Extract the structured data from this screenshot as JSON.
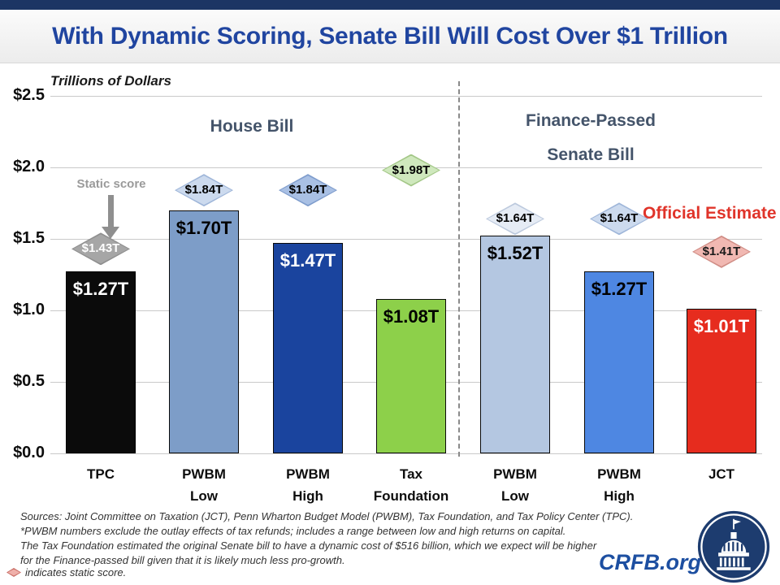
{
  "header": {
    "title": "With Dynamic Scoring, Senate Bill Will Cost Over $1 Trillion"
  },
  "chart_data": {
    "type": "bar",
    "title": "With Dynamic Scoring, Senate Bill Will Cost Over $1 Trillion",
    "axis_label": "Trillions of Dollars",
    "ylim": [
      0,
      2.5
    ],
    "grid": true,
    "yticks": [
      {
        "value": 0.0,
        "label": "$0.0"
      },
      {
        "value": 0.5,
        "label": "$0.5"
      },
      {
        "value": 1.0,
        "label": "$1.0"
      },
      {
        "value": 1.5,
        "label": "$1.5"
      },
      {
        "value": 2.0,
        "label": "$2.0"
      },
      {
        "value": 2.5,
        "label": "$2.5"
      }
    ],
    "sections": [
      {
        "label": "House Bill",
        "label_lines": [
          "House Bill"
        ]
      },
      {
        "label": "Finance-Passed Senate Bill",
        "label_lines": [
          "Finance-Passed",
          "Senate Bill"
        ]
      }
    ],
    "bars": [
      {
        "category": "TPC",
        "category_lines": "TPC",
        "section": "House Bill",
        "dynamic_value": 1.27,
        "dynamic_label": "$1.27T",
        "static_value": 1.43,
        "static_label": "$1.43T",
        "bar_color": "#0b0b0b",
        "bar_border": "#000000",
        "value_text_color": "#ffffff",
        "diamond_fill": "#a6a6a6",
        "diamond_border": "#8f8f8f",
        "diamond_text_color": "#ffffff"
      },
      {
        "category": "PWBM Low",
        "category_lines": "PWBM\nLow",
        "section": "House Bill",
        "dynamic_value": 1.7,
        "dynamic_label": "$1.70T",
        "static_value": 1.84,
        "static_label": "$1.84T",
        "bar_color": "#7d9dc8",
        "bar_border": "#0a0a0a",
        "value_text_color": "#000000",
        "diamond_fill": "#ccdaee",
        "diamond_border": "#9fb6d9",
        "diamond_text_color": "#000000"
      },
      {
        "category": "PWBM High",
        "category_lines": "PWBM\nHigh",
        "section": "House Bill",
        "dynamic_value": 1.47,
        "dynamic_label": "$1.47T",
        "static_value": 1.84,
        "static_label": "$1.84T",
        "bar_color": "#1a449e",
        "bar_border": "#0a0a0a",
        "value_text_color": "#ffffff",
        "diamond_fill": "#a9c0e4",
        "diamond_border": "#7e9ccc",
        "diamond_text_color": "#000000"
      },
      {
        "category": "Tax Foundation",
        "category_lines": "Tax\nFoundation",
        "section": "House Bill",
        "dynamic_value": 1.08,
        "dynamic_label": "$1.08T",
        "static_value": 1.98,
        "static_label": "$1.98T",
        "bar_color": "#8dd04a",
        "bar_border": "#0a0a0a",
        "value_text_color": "#000000",
        "diamond_fill": "#cfe8bd",
        "diamond_border": "#a3c787",
        "diamond_text_color": "#000000"
      },
      {
        "category": "PWBM Low",
        "category_lines": "PWBM\nLow",
        "section": "Finance-Passed Senate Bill",
        "dynamic_value": 1.52,
        "dynamic_label": "$1.52T",
        "static_value": 1.64,
        "static_label": "$1.64T",
        "bar_color": "#b4c7e1",
        "bar_border": "#0a0a0a",
        "value_text_color": "#000000",
        "diamond_fill": "#e6ecf5",
        "diamond_border": "#bcc9dd",
        "diamond_text_color": "#000000"
      },
      {
        "category": "PWBM High",
        "category_lines": "PWBM\nHigh",
        "section": "Finance-Passed Senate Bill",
        "dynamic_value": 1.27,
        "dynamic_label": "$1.27T",
        "static_value": 1.64,
        "static_label": "$1.64T",
        "bar_color": "#4e87e2",
        "bar_border": "#0a0a0a",
        "value_text_color": "#000000",
        "diamond_fill": "#ccdaee",
        "diamond_border": "#9fb6d9",
        "diamond_text_color": "#000000"
      },
      {
        "category": "JCT",
        "category_lines": "JCT",
        "section": "Finance-Passed Senate Bill",
        "dynamic_value": 1.01,
        "dynamic_label": "$1.01T",
        "static_value": 1.41,
        "static_label": "$1.41T",
        "bar_color": "#e62c1e",
        "bar_border": "#0a0a0a",
        "value_text_color": "#ffffff",
        "diamond_fill": "#f1b8b2",
        "diamond_border": "#d08d85",
        "diamond_text_color": "#1a1a1a"
      }
    ],
    "annotations": {
      "static_score_label": "Static score",
      "official_estimate_label": "Official Estimate"
    }
  },
  "footer": {
    "lines": [
      "Sources: Joint Committee on Taxation (JCT), Penn Wharton Budget Model (PWBM), Tax Foundation, and Tax Policy Center (TPC).",
      "*PWBM numbers exclude the outlay effects of tax refunds; includes a range between low and high returns on capital.",
      "The Tax Foundation estimated the original Senate bill to have a dynamic cost of $516 billion, which we expect will be higher",
      "for the Finance-passed bill given that it is likely much less pro-growth."
    ],
    "legend_text": "indicates static score.",
    "brand": "CRFB.org"
  },
  "colors": {
    "title_blue": "#2045a0",
    "top_strip_navy": "#1c3564",
    "section_header": "#44546a",
    "official_estimate_red": "#e0342a",
    "gridline_gray": "#c9c9c9",
    "brand_blue": "#1d4fa1"
  }
}
